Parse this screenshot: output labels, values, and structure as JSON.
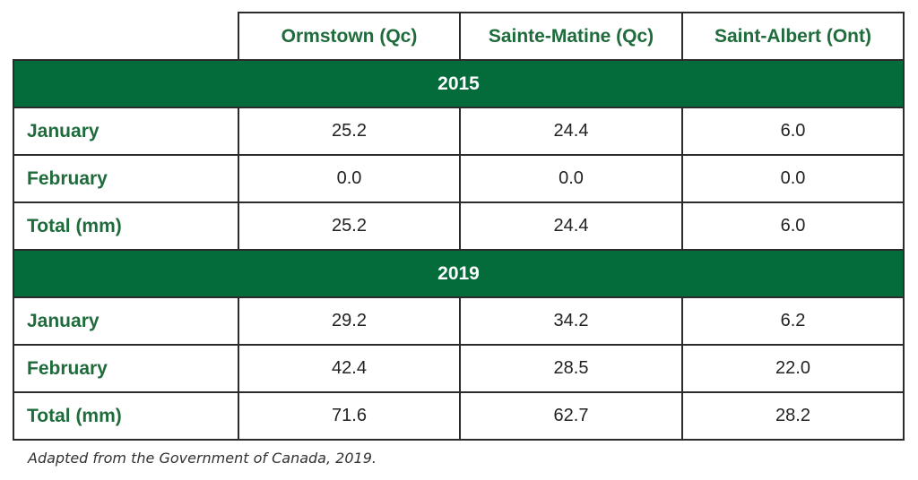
{
  "table": {
    "columns": [
      "Ormstown (Qc)",
      "Sainte-Matine (Qc)",
      "Saint-Albert (Ont)"
    ],
    "sections": [
      {
        "year": "2015",
        "rows": [
          {
            "label": "January",
            "values": [
              "25.2",
              "24.4",
              "6.0"
            ]
          },
          {
            "label": "February",
            "values": [
              "0.0",
              "0.0",
              "0.0"
            ]
          },
          {
            "label": "Total (mm)",
            "values": [
              "25.2",
              "24.4",
              "6.0"
            ]
          }
        ]
      },
      {
        "year": "2019",
        "rows": [
          {
            "label": "January",
            "values": [
              "29.2",
              "34.2",
              "6.2"
            ]
          },
          {
            "label": "February",
            "values": [
              "42.4",
              "28.5",
              "22.0"
            ]
          },
          {
            "label": "Total (mm)",
            "values": [
              "71.6",
              "62.7",
              "28.2"
            ]
          }
        ]
      }
    ]
  },
  "caption": "Adapted from the Government of Canada, 2019.",
  "colors": {
    "accent_green": "#046b3b",
    "header_text": "#1f6b3c"
  }
}
